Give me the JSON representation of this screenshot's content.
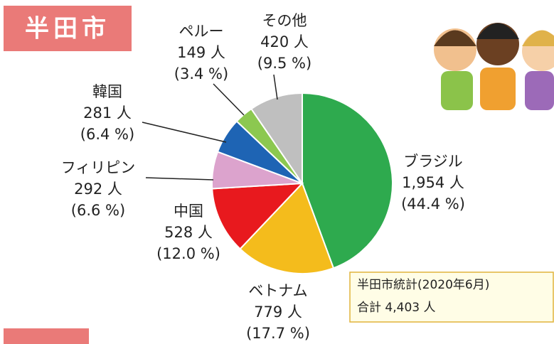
{
  "chart_data": {
    "type": "pie",
    "title": "半田市",
    "categories": [
      "ブラジル",
      "ベトナム",
      "中国",
      "フィリピン",
      "韓国",
      "ペルー",
      "その他"
    ],
    "values": [
      1954,
      779,
      528,
      292,
      281,
      149,
      420
    ],
    "value_labels": [
      "1,954 人",
      "779 人",
      "528 人",
      "292 人",
      "281 人",
      "149 人",
      "420 人"
    ],
    "percent_labels": [
      "(44.4 %)",
      "(17.7 %)",
      "(12.0 %)",
      "(6.6 %)",
      "(6.4 %)",
      "(3.4 %)",
      "(9.5 %)"
    ],
    "colors": [
      "#2eaa4e",
      "#f4bc1c",
      "#e8191e",
      "#dca3cd",
      "#1e64b4",
      "#8cc850",
      "#bfbfbf"
    ],
    "annotations": [
      "半田市統計(2020年6月)",
      "合計 4,403 人"
    ]
  }
}
